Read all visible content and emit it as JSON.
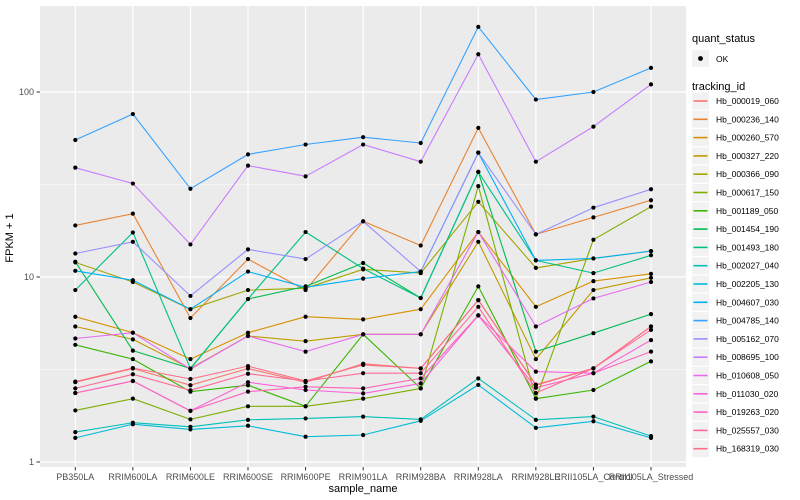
{
  "figure": {
    "background": "#FFFFFF",
    "panel_background": "#EBEBEB",
    "grid_color": "#FFFFFF",
    "legend_key_background": "#F2F2F2",
    "axis_text_color": "#4D4D4D",
    "point_color": "#000000"
  },
  "chart_data": {
    "type": "line",
    "title": "",
    "xlabel": "sample_name",
    "ylabel": "FPKM + 1",
    "y_scale": "log10",
    "y_ticks": [
      1,
      10,
      100
    ],
    "y_minor_ticks": [
      3.162,
      31.62
    ],
    "ylim": [
      0.95,
      292
    ],
    "grid": true,
    "legend_position": "right",
    "categories": [
      "PB350LA",
      "RRIM600LA",
      "RRIM600LE",
      "RRIM600SE",
      "RRIM600PE",
      "RRIM901LA",
      "RRIM928BA",
      "RRIM928LA",
      "RRIM928LE",
      "RRII105LA_Control",
      "RRII105LA_Stressed"
    ],
    "series": [
      {
        "name": "Hb_000019_060",
        "color": "#F8766D",
        "values": [
          2.7,
          3.2,
          2.6,
          3.2,
          2.7,
          3.4,
          3.2,
          7.5,
          2.6,
          3.2,
          5.4
        ]
      },
      {
        "name": "Hb_000236_140",
        "color": "#EA8331",
        "values": [
          19,
          22,
          6.0,
          12.5,
          8.5,
          20,
          14.8,
          64,
          17,
          21,
          26
        ]
      },
      {
        "name": "Hb_000260_570",
        "color": "#D89000",
        "values": [
          6.1,
          5.0,
          3.6,
          5.0,
          6.1,
          5.9,
          6.7,
          17.5,
          6.9,
          9.5,
          10.4
        ]
      },
      {
        "name": "Hb_000327_220",
        "color": "#C09B00",
        "values": [
          5.4,
          4.6,
          3.2,
          4.8,
          4.5,
          4.9,
          4.9,
          15.5,
          3.6,
          8.5,
          9.9
        ]
      },
      {
        "name": "Hb_000366_090",
        "color": "#A3A500",
        "values": [
          12.0,
          9.4,
          6.7,
          8.5,
          8.7,
          11.0,
          10.5,
          25.5,
          11.2,
          12.6,
          13.8
        ]
      },
      {
        "name": "Hb_000617_150",
        "color": "#7CAE00",
        "values": [
          1.9,
          2.2,
          1.7,
          2.0,
          2.0,
          2.2,
          2.5,
          31,
          2.2,
          15.9,
          24
        ]
      },
      {
        "name": "Hb_001189_050",
        "color": "#39B600",
        "values": [
          4.3,
          3.6,
          2.4,
          2.6,
          2.0,
          4.9,
          2.5,
          8.9,
          2.2,
          2.45,
          3.5
        ]
      },
      {
        "name": "Hb_001454_190",
        "color": "#00BB4E",
        "values": [
          12.1,
          4.0,
          3.2,
          7.6,
          8.9,
          11.9,
          7.7,
          37,
          3.95,
          4.97,
          6.3
        ]
      },
      {
        "name": "Hb_001493_180",
        "color": "#00C087",
        "values": [
          8.5,
          17.4,
          3.2,
          7.6,
          17.5,
          11.1,
          7.7,
          37,
          12.3,
          10.5,
          13.1
        ]
      },
      {
        "name": "Hb_002027_040",
        "color": "#00C0B8",
        "values": [
          1.45,
          1.63,
          1.55,
          1.69,
          1.72,
          1.76,
          1.7,
          2.83,
          1.69,
          1.76,
          1.38
        ]
      },
      {
        "name": "Hb_002205_130",
        "color": "#00BCD8",
        "values": [
          1.35,
          1.6,
          1.5,
          1.57,
          1.37,
          1.4,
          1.67,
          2.61,
          1.53,
          1.66,
          1.35
        ]
      },
      {
        "name": "Hb_004607_030",
        "color": "#00B0F6",
        "values": [
          10.8,
          9.6,
          6.7,
          10.7,
          8.8,
          9.8,
          10.7,
          47,
          12.3,
          12.6,
          13.8
        ]
      },
      {
        "name": "Hb_004785_140",
        "color": "#35A2FF",
        "values": [
          55,
          76,
          30,
          46,
          52,
          57,
          53,
          225,
          91,
          100,
          135
        ]
      },
      {
        "name": "Hb_005162_070",
        "color": "#9590FF",
        "values": [
          13.4,
          15.5,
          7.9,
          14.1,
          12.5,
          20,
          10.7,
          47,
          17.0,
          23.7,
          29.8
        ]
      },
      {
        "name": "Hb_008695_100",
        "color": "#C77CFF",
        "values": [
          39,
          32,
          15,
          40,
          35,
          52,
          42,
          160,
          42,
          65,
          110
        ]
      },
      {
        "name": "Hb_010608_050",
        "color": "#E76BF3",
        "values": [
          4.65,
          5.0,
          3.18,
          4.8,
          3.95,
          4.9,
          4.9,
          17.5,
          5.4,
          7.66,
          9.4
        ]
      },
      {
        "name": "Hb_011030_020",
        "color": "#FA62DB",
        "values": [
          2.36,
          2.74,
          1.89,
          2.7,
          2.45,
          2.35,
          2.66,
          6.2,
          3.08,
          3.02,
          4.56
        ]
      },
      {
        "name": "Hb_019263_020",
        "color": "#FF62BC",
        "values": [
          2.36,
          2.74,
          1.89,
          2.4,
          2.55,
          2.5,
          2.83,
          6.2,
          2.52,
          3.02,
          3.95
        ]
      },
      {
        "name": "Hb_025557_030",
        "color": "#FF6A98",
        "values": [
          2.5,
          2.98,
          2.44,
          3.0,
          2.74,
          3.02,
          3.02,
          6.9,
          2.36,
          3.21,
          5.18
        ]
      },
      {
        "name": "Hb_168319_030",
        "color": "#FD6F87",
        "values": [
          2.72,
          3.22,
          2.81,
          3.3,
          2.74,
          3.35,
          3.21,
          7.5,
          2.62,
          3.21,
          5.4
        ]
      }
    ]
  },
  "legend": {
    "quant_status_title": "quant_status",
    "quant_status_items": [
      {
        "label": "OK",
        "marker": "point-icon"
      }
    ],
    "tracking_id_title": "tracking_id"
  }
}
